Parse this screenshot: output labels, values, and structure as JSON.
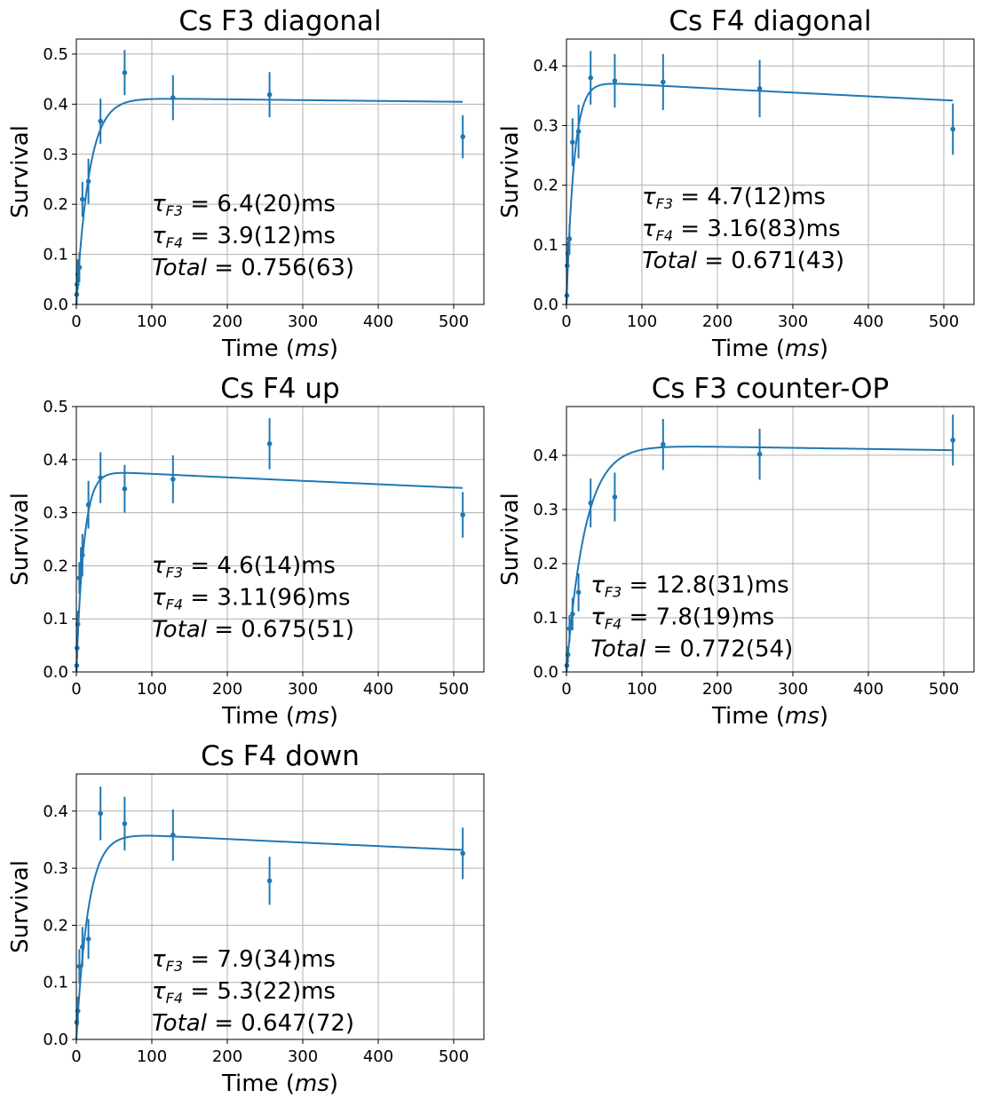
{
  "colors": {
    "series": "#1f77b4",
    "grid": "#b0b0b0",
    "axis": "#000000"
  },
  "chart_data": [
    {
      "type": "scatter",
      "title": "Cs F3 diagonal",
      "xlabel": "Time (ms)",
      "ylabel": "Survival",
      "xlim": [
        0,
        540
      ],
      "ylim": [
        0,
        0.53
      ],
      "xticks": [
        0,
        100,
        200,
        300,
        400,
        500
      ],
      "yticks": [
        0.0,
        0.1,
        0.2,
        0.3,
        0.4,
        0.5
      ],
      "ytick_labels": [
        "0.0",
        "0.1",
        "0.2",
        "0.3",
        "0.4",
        "0.5"
      ],
      "grid": true,
      "annotation": [
        "τ_F3 = 6.4(20)ms",
        "τ_F4 = 3.9(12)ms",
        "Total = 0.756(63)"
      ],
      "points": [
        {
          "x": 0.5,
          "y": 0.02,
          "err": 0.02
        },
        {
          "x": 1,
          "y": 0.04,
          "err": 0.02
        },
        {
          "x": 2,
          "y": 0.06,
          "err": 0.03
        },
        {
          "x": 4,
          "y": 0.074,
          "err": 0.03
        },
        {
          "x": 8,
          "y": 0.21,
          "err": 0.035
        },
        {
          "x": 16,
          "y": 0.246,
          "err": 0.045
        },
        {
          "x": 32,
          "y": 0.366,
          "err": 0.045
        },
        {
          "x": 64,
          "y": 0.463,
          "err": 0.045
        },
        {
          "x": 128,
          "y": 0.413,
          "err": 0.045
        },
        {
          "x": 256,
          "y": 0.419,
          "err": 0.045
        },
        {
          "x": 512,
          "y": 0.335,
          "err": 0.043
        }
      ],
      "fit": {
        "A": 0.413,
        "tau_rise": 17,
        "decay": 4e-05
      }
    },
    {
      "type": "scatter",
      "title": "Cs F4 diagonal",
      "xlabel": "Time (ms)",
      "ylabel": "Survival",
      "xlim": [
        0,
        540
      ],
      "ylim": [
        0,
        0.445
      ],
      "xticks": [
        0,
        100,
        200,
        300,
        400,
        500
      ],
      "yticks": [
        0.0,
        0.1,
        0.2,
        0.3,
        0.4
      ],
      "ytick_labels": [
        "0.0",
        "0.1",
        "0.2",
        "0.3",
        "0.4"
      ],
      "grid": true,
      "annotation": [
        "τ_F3 = 4.7(12)ms",
        "τ_F4 = 3.16(83)ms",
        "Total = 0.671(43)"
      ],
      "points": [
        {
          "x": 0.5,
          "y": 0.015,
          "err": 0.01
        },
        {
          "x": 1,
          "y": 0.065,
          "err": 0.02
        },
        {
          "x": 2,
          "y": 0.086,
          "err": 0.02
        },
        {
          "x": 4,
          "y": 0.11,
          "err": 0.025
        },
        {
          "x": 8,
          "y": 0.272,
          "err": 0.04
        },
        {
          "x": 16,
          "y": 0.29,
          "err": 0.045
        },
        {
          "x": 32,
          "y": 0.38,
          "err": 0.045
        },
        {
          "x": 64,
          "y": 0.375,
          "err": 0.045
        },
        {
          "x": 128,
          "y": 0.373,
          "err": 0.047
        },
        {
          "x": 256,
          "y": 0.362,
          "err": 0.048
        },
        {
          "x": 512,
          "y": 0.294,
          "err": 0.043
        }
      ],
      "fit": {
        "A": 0.375,
        "tau_rise": 10,
        "decay": 0.00018
      }
    },
    {
      "type": "scatter",
      "title": "Cs F4 up",
      "xlabel": "Time (ms)",
      "ylabel": "Survival",
      "xlim": [
        0,
        540
      ],
      "ylim": [
        0,
        0.5
      ],
      "xticks": [
        0,
        100,
        200,
        300,
        400,
        500
      ],
      "yticks": [
        0.0,
        0.1,
        0.2,
        0.3,
        0.4,
        0.5
      ],
      "ytick_labels": [
        "0.0",
        "0.1",
        "0.2",
        "0.3",
        "0.4",
        "0.5"
      ],
      "grid": true,
      "annotation": [
        "τ_F3 = 4.6(14)ms",
        "τ_F4 = 3.11(96)ms",
        "Total = 0.675(51)"
      ],
      "points": [
        {
          "x": 0.5,
          "y": 0.012,
          "err": 0.01
        },
        {
          "x": 1,
          "y": 0.045,
          "err": 0.02
        },
        {
          "x": 2,
          "y": 0.09,
          "err": 0.025
        },
        {
          "x": 4,
          "y": 0.177,
          "err": 0.03
        },
        {
          "x": 6,
          "y": 0.2,
          "err": 0.035
        },
        {
          "x": 8,
          "y": 0.22,
          "err": 0.04
        },
        {
          "x": 16,
          "y": 0.315,
          "err": 0.045
        },
        {
          "x": 32,
          "y": 0.366,
          "err": 0.048
        },
        {
          "x": 64,
          "y": 0.345,
          "err": 0.045
        },
        {
          "x": 128,
          "y": 0.363,
          "err": 0.045
        },
        {
          "x": 256,
          "y": 0.43,
          "err": 0.048
        },
        {
          "x": 512,
          "y": 0.296,
          "err": 0.043
        }
      ],
      "fit": {
        "A": 0.38,
        "tau_rise": 10,
        "decay": 0.00018
      }
    },
    {
      "type": "scatter",
      "title": "Cs F3 counter-OP",
      "xlabel": "Time (ms)",
      "ylabel": "Survival",
      "xlim": [
        0,
        540
      ],
      "ylim": [
        0,
        0.49
      ],
      "xticks": [
        0,
        100,
        200,
        300,
        400,
        500
      ],
      "yticks": [
        0.0,
        0.1,
        0.2,
        0.3,
        0.4
      ],
      "ytick_labels": [
        "0.0",
        "0.1",
        "0.2",
        "0.3",
        "0.4"
      ],
      "grid": true,
      "annotation": [
        "τ_F3 = 12.8(31)ms",
        "τ_F4 = 7.8(19)ms",
        "Total = 0.772(54)"
      ],
      "points": [
        {
          "x": 0.5,
          "y": 0.012,
          "err": 0.01
        },
        {
          "x": 2,
          "y": 0.032,
          "err": 0.015
        },
        {
          "x": 4,
          "y": 0.08,
          "err": 0.025
        },
        {
          "x": 8,
          "y": 0.107,
          "err": 0.03
        },
        {
          "x": 16,
          "y": 0.147,
          "err": 0.035
        },
        {
          "x": 32,
          "y": 0.312,
          "err": 0.045
        },
        {
          "x": 64,
          "y": 0.323,
          "err": 0.045
        },
        {
          "x": 128,
          "y": 0.42,
          "err": 0.047
        },
        {
          "x": 256,
          "y": 0.402,
          "err": 0.047
        },
        {
          "x": 512,
          "y": 0.428,
          "err": 0.047
        }
      ],
      "fit": {
        "A": 0.42,
        "tau_rise": 25,
        "decay": 5e-05
      }
    },
    {
      "type": "scatter",
      "title": "Cs F4 down",
      "xlabel": "Time (ms)",
      "ylabel": "Survival",
      "xlim": [
        0,
        540
      ],
      "ylim": [
        0,
        0.465
      ],
      "xticks": [
        0,
        100,
        200,
        300,
        400,
        500
      ],
      "yticks": [
        0.0,
        0.1,
        0.2,
        0.3,
        0.4
      ],
      "ytick_labels": [
        "0.0",
        "0.1",
        "0.2",
        "0.3",
        "0.4"
      ],
      "grid": true,
      "annotation": [
        "τ_F3 = 7.9(34)ms",
        "τ_F4 = 5.3(22)ms",
        "Total = 0.647(72)"
      ],
      "points": [
        {
          "x": 0.5,
          "y": 0.03,
          "err": 0.02
        },
        {
          "x": 2,
          "y": 0.05,
          "err": 0.025
        },
        {
          "x": 4,
          "y": 0.128,
          "err": 0.03
        },
        {
          "x": 8,
          "y": 0.162,
          "err": 0.035
        },
        {
          "x": 16,
          "y": 0.176,
          "err": 0.035
        },
        {
          "x": 32,
          "y": 0.396,
          "err": 0.047
        },
        {
          "x": 64,
          "y": 0.378,
          "err": 0.047
        },
        {
          "x": 128,
          "y": 0.358,
          "err": 0.045
        },
        {
          "x": 256,
          "y": 0.278,
          "err": 0.042
        },
        {
          "x": 512,
          "y": 0.326,
          "err": 0.045
        }
      ],
      "fit": {
        "A": 0.364,
        "tau_rise": 16,
        "decay": 0.00018
      }
    }
  ]
}
